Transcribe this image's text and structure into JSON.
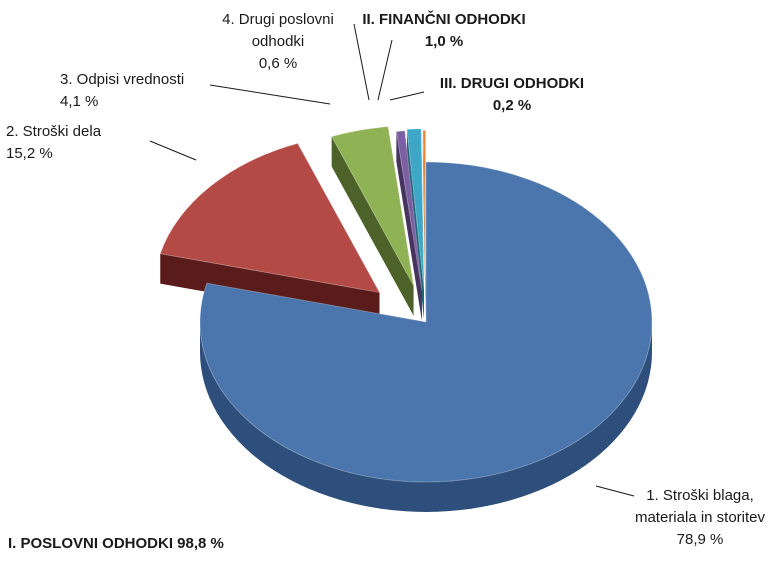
{
  "chart_data": {
    "type": "pie",
    "style": "3d-exploded",
    "slices": [
      {
        "label_lines": [
          "1. Stroški blaga,",
          "materiala in storitev",
          "78,9 %"
        ],
        "value": 78.9,
        "color": "#4a76ad",
        "side": "#2e4f7b"
      },
      {
        "label_lines": [
          "2. Stroški dela",
          "15,2 %"
        ],
        "value": 15.2,
        "color": "#b44a46",
        "side": "#5a1c1a"
      },
      {
        "label_lines": [
          "3. Odpisi vrednosti",
          "4,1 %"
        ],
        "value": 4.1,
        "color": "#8fb255",
        "side": "#4c6228"
      },
      {
        "label_lines": [
          "4. Drugi poslovni",
          "odhodki",
          "0,6 %"
        ],
        "value": 0.6,
        "color": "#7c5fa3",
        "side": "#46335e"
      },
      {
        "label_lines": [
          "II. FINANČNI ODHODKI",
          "1,0 %"
        ],
        "value": 1.0,
        "color": "#3ea7c8",
        "side": "#1f6478",
        "bold": true
      },
      {
        "label_lines": [
          "III. DRUGI ODHODKI",
          "0,2 %"
        ],
        "value": 0.2,
        "color": "#e08a3c",
        "side": "#8a4e1c",
        "bold": true
      }
    ],
    "group_label": "I. POSLOVNI ODHODKI 98,8 %"
  }
}
